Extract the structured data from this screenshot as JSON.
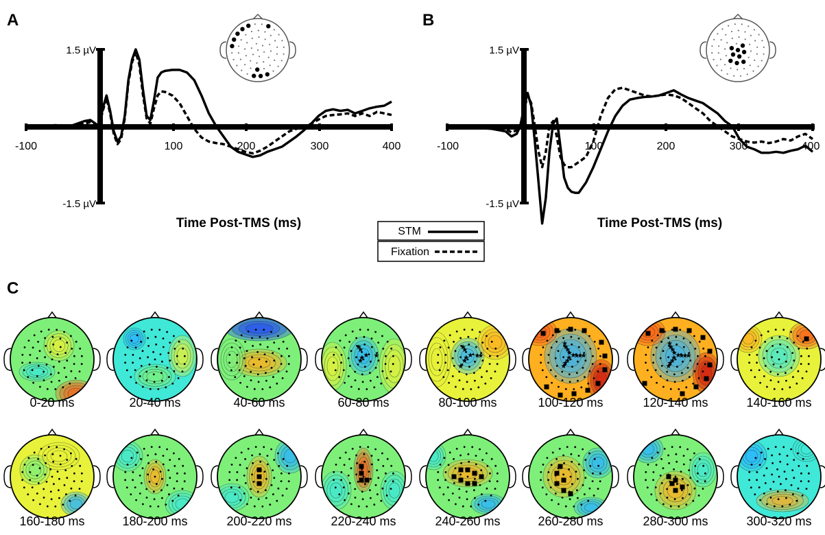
{
  "panels": {
    "a": "A",
    "b": "B",
    "c": "C"
  },
  "legend": {
    "stm": "STM",
    "fixation": "Fixation"
  },
  "chart_data": [
    {
      "type": "line",
      "id": "A",
      "xlabel": "Time Post-TMS (ms)",
      "xlim": [
        -100,
        400
      ],
      "ylim": [
        -1.5,
        1.5
      ],
      "xticks": [
        "-100",
        "100",
        "200",
        "300",
        "400"
      ],
      "yticks": {
        "top": "1.5 µV",
        "bottom": "-1.5 µV"
      },
      "series": [
        {
          "name": "STM",
          "style": "solid",
          "x": [
            -100,
            -80,
            -60,
            -40,
            -20,
            -12,
            -5,
            0,
            5,
            10,
            15,
            20,
            25,
            30,
            35,
            40,
            45,
            50,
            55,
            60,
            65,
            70,
            75,
            80,
            85,
            90,
            100,
            110,
            120,
            130,
            140,
            150,
            160,
            170,
            180,
            190,
            200,
            210,
            220,
            230,
            240,
            250,
            260,
            270,
            280,
            290,
            300,
            310,
            320,
            330,
            340,
            350,
            360,
            370,
            380,
            390,
            400
          ],
          "y": [
            0,
            0,
            0.02,
            0,
            0.1,
            0.12,
            0.05,
            0,
            0.35,
            0.6,
            0.3,
            -0.1,
            -0.3,
            -0.2,
            0.2,
            0.9,
            1.3,
            1.5,
            1.3,
            0.7,
            0.2,
            0.12,
            0.5,
            0.95,
            1.05,
            1.08,
            1.1,
            1.1,
            1.05,
            0.9,
            0.6,
            0.25,
            0.0,
            -0.2,
            -0.4,
            -0.5,
            -0.55,
            -0.6,
            -0.57,
            -0.5,
            -0.45,
            -0.4,
            -0.3,
            -0.2,
            -0.08,
            0.05,
            0.2,
            0.3,
            0.33,
            0.3,
            0.32,
            0.25,
            0.3,
            0.35,
            0.38,
            0.4,
            0.48
          ]
        },
        {
          "name": "Fixation",
          "style": "dashed",
          "x": [
            -100,
            -80,
            -60,
            -40,
            -20,
            -12,
            -5,
            0,
            5,
            10,
            15,
            20,
            25,
            30,
            35,
            40,
            45,
            50,
            55,
            60,
            65,
            70,
            75,
            80,
            85,
            90,
            100,
            110,
            120,
            130,
            140,
            150,
            160,
            170,
            180,
            190,
            200,
            210,
            220,
            230,
            240,
            250,
            260,
            270,
            280,
            290,
            300,
            310,
            320,
            330,
            340,
            350,
            360,
            370,
            380,
            390,
            400
          ],
          "y": [
            0,
            0,
            0,
            0.01,
            0.05,
            0.08,
            0.04,
            0,
            0.3,
            0.55,
            0.25,
            -0.15,
            -0.35,
            -0.25,
            0.15,
            0.85,
            1.25,
            1.45,
            1.2,
            0.6,
            0.15,
            0.05,
            0.35,
            0.6,
            0.68,
            0.67,
            0.6,
            0.45,
            0.2,
            -0.05,
            -0.22,
            -0.3,
            -0.33,
            -0.35,
            -0.4,
            -0.45,
            -0.5,
            -0.53,
            -0.48,
            -0.4,
            -0.3,
            -0.2,
            -0.1,
            -0.05,
            -0.02,
            0.05,
            0.13,
            0.2,
            0.22,
            0.23,
            0.25,
            0.2,
            0.25,
            0.2,
            0.28,
            0.25,
            0.22
          ]
        }
      ]
    },
    {
      "type": "line",
      "id": "B",
      "xlabel": "Time Post-TMS (ms)",
      "xlim": [
        -100,
        400
      ],
      "ylim": [
        -1.5,
        1.5
      ],
      "xticks": [
        "-100",
        "100",
        "200",
        "300",
        "400"
      ],
      "yticks": {
        "top": "1.5 µV",
        "bottom": "-1.5 µV"
      },
      "series": [
        {
          "name": "STM",
          "style": "solid",
          "x": [
            -100,
            -80,
            -60,
            -40,
            -20,
            -12,
            -5,
            0,
            5,
            10,
            15,
            20,
            25,
            30,
            35,
            40,
            45,
            50,
            55,
            60,
            65,
            70,
            75,
            80,
            90,
            100,
            110,
            120,
            130,
            140,
            150,
            160,
            170,
            180,
            190,
            200,
            210,
            220,
            230,
            240,
            250,
            260,
            270,
            280,
            290,
            300,
            310,
            320,
            330,
            340,
            350,
            360,
            370,
            380,
            390,
            400
          ],
          "y": [
            0,
            0.01,
            -0.03,
            -0.05,
            -0.1,
            -0.2,
            -0.15,
            0,
            0.35,
            0.65,
            0.4,
            -0.3,
            -1.1,
            -1.9,
            -1.4,
            -0.5,
            0.05,
            0.15,
            -0.4,
            -1.0,
            -1.2,
            -1.28,
            -1.3,
            -1.3,
            -1.1,
            -0.8,
            -0.45,
            -0.1,
            0.2,
            0.4,
            0.52,
            0.55,
            0.57,
            0.58,
            0.6,
            0.65,
            0.7,
            0.62,
            0.55,
            0.5,
            0.45,
            0.35,
            0.25,
            0.1,
            0.0,
            -0.25,
            -0.4,
            -0.45,
            -0.52,
            -0.52,
            -0.5,
            -0.52,
            -0.48,
            -0.45,
            -0.38,
            -0.5
          ]
        },
        {
          "name": "Fixation",
          "style": "dashed",
          "x": [
            -100,
            -80,
            -60,
            -40,
            -20,
            -12,
            -5,
            0,
            5,
            10,
            15,
            20,
            25,
            30,
            35,
            40,
            45,
            50,
            55,
            60,
            65,
            70,
            75,
            80,
            90,
            100,
            110,
            120,
            130,
            140,
            150,
            160,
            170,
            180,
            190,
            200,
            210,
            220,
            230,
            240,
            250,
            260,
            270,
            280,
            290,
            300,
            310,
            320,
            330,
            340,
            350,
            360,
            370,
            380,
            390,
            400
          ],
          "y": [
            0,
            0,
            0,
            -0.03,
            -0.05,
            -0.12,
            -0.08,
            0,
            0.3,
            0.6,
            0.45,
            0.0,
            -0.5,
            -0.8,
            -0.5,
            0.0,
            0.1,
            -0.2,
            -0.6,
            -0.75,
            -0.8,
            -0.8,
            -0.75,
            -0.7,
            -0.6,
            -0.3,
            0.2,
            0.55,
            0.72,
            0.75,
            0.7,
            0.65,
            0.6,
            0.58,
            0.6,
            0.62,
            0.6,
            0.55,
            0.45,
            0.35,
            0.25,
            0.1,
            0.0,
            -0.1,
            -0.2,
            -0.25,
            -0.3,
            -0.32,
            -0.3,
            -0.33,
            -0.3,
            -0.25,
            -0.28,
            -0.2,
            -0.15,
            -0.25
          ]
        }
      ]
    },
    {
      "type": "heatmap",
      "id": "C",
      "labels": [
        "0-20 ms",
        "20-40 ms",
        "40-60 ms",
        "60-80 ms",
        "80-100 ms",
        "100-120 ms",
        "120-140 ms",
        "140-160 ms",
        "160-180 ms",
        "180-200 ms",
        "200-220 ms",
        "220-240 ms",
        "240-260 ms",
        "260-280 ms",
        "280-300 ms",
        "300-320 ms"
      ],
      "colormap": [
        "#1e40ff",
        "#2ab4ff",
        "#40e8d8",
        "#7ef07a",
        "#e8f23a",
        "#ffb020",
        "#ff5a1a",
        "#cc1010"
      ]
    }
  ]
}
